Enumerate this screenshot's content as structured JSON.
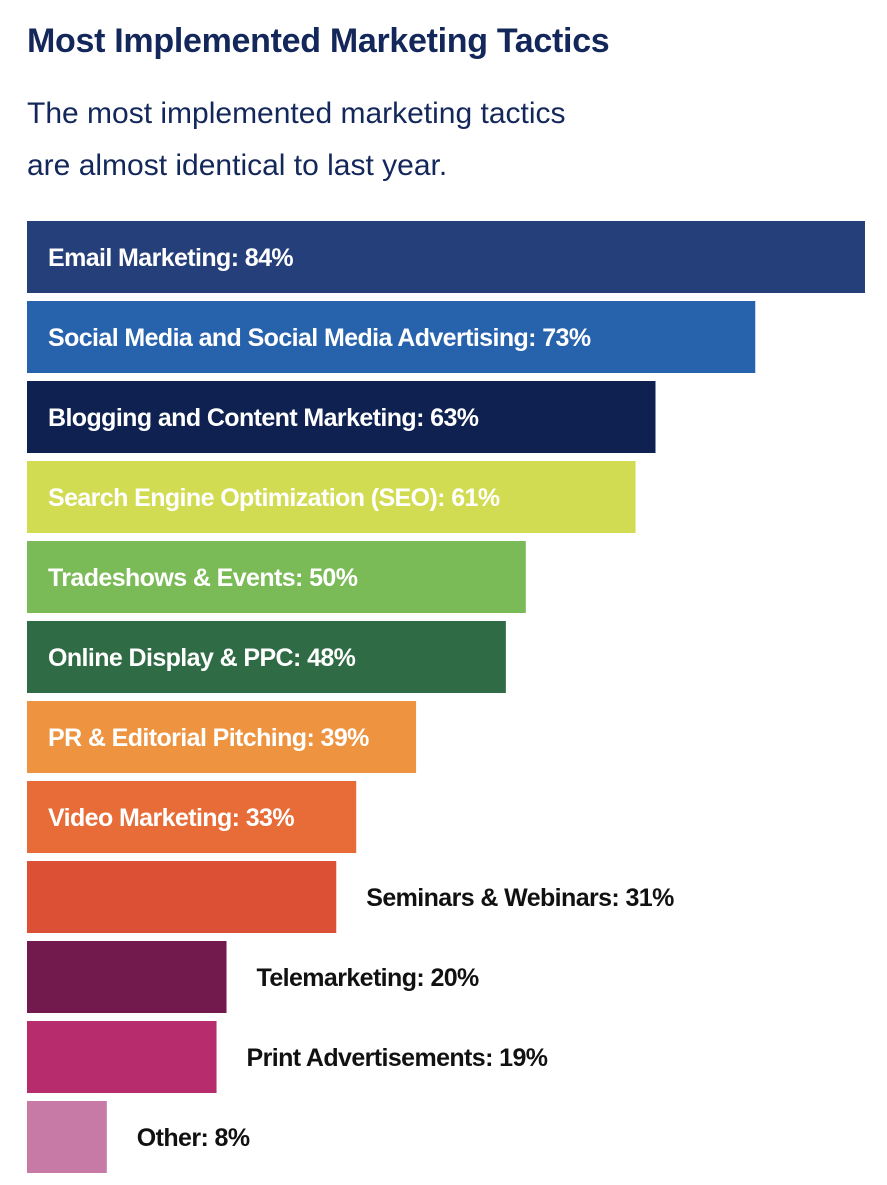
{
  "chart_data": {
    "type": "bar",
    "orientation": "horizontal",
    "title": "Most Implemented Marketing Tactics",
    "subtitle_lines": [
      "The most implemented marketing tactics",
      "are almost identical to last year."
    ],
    "xlabel": "",
    "ylabel": "",
    "xlim": [
      0,
      84
    ],
    "grid": false,
    "unit": "%",
    "categories": [
      "Email Marketing",
      "Social Media and Social Media Advertising",
      "Blogging and Content Marketing",
      "Search Engine Optimization (SEO)",
      "Tradeshows & Events",
      "Online Display & PPC",
      "PR & Editorial Pitching",
      "Video Marketing",
      "Seminars & Webinars",
      "Telemarketing",
      "Print Advertisements",
      "Other"
    ],
    "values": [
      84,
      73,
      63,
      61,
      50,
      48,
      39,
      33,
      31,
      20,
      19,
      8
    ],
    "labels": [
      "Email Marketing: 84%",
      "Social Media and Social Media Advertising: 73%",
      "Blogging and Content Marketing: 63%",
      "Search Engine Optimization (SEO): 61%",
      "Tradeshows & Events: 50%",
      "Online Display & PPC: 48%",
      "PR & Editorial Pitching: 39%",
      "Video Marketing: 33%",
      "Seminars & Webinars: 31%",
      "Telemarketing: 20%",
      "Print Advertisements: 19%",
      "Other: 8%"
    ],
    "colors": [
      "#253f7a",
      "#2762ac",
      "#0e2150",
      "#d2dc52",
      "#7aba57",
      "#2f6b44",
      "#ee9440",
      "#e76c37",
      "#dc5035",
      "#721a4e",
      "#b72c6d",
      "#c67aa5"
    ],
    "label_inside": [
      true,
      true,
      true,
      true,
      true,
      true,
      true,
      true,
      false,
      false,
      false,
      false
    ]
  }
}
